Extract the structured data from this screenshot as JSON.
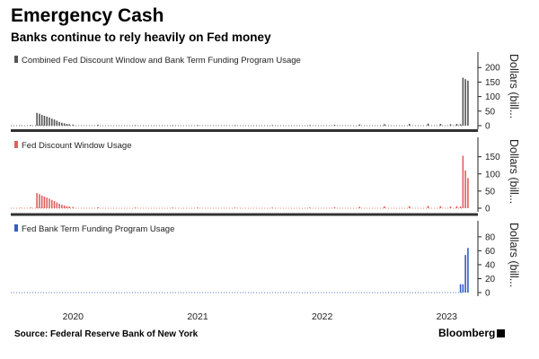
{
  "header": {
    "title": "Emergency Cash",
    "subtitle": "Banks continue to rely heavily on Fed money"
  },
  "footer": {
    "source": "Source: Federal Reserve Bank of New York",
    "brand": "Bloomberg"
  },
  "chart_data": {
    "type": "bar",
    "x_axis": {
      "start": 2019.5,
      "end": 2023.25,
      "ticks": [
        "2020",
        "2021",
        "2022",
        "2023"
      ]
    },
    "panels": [
      {
        "legend": "Combined Fed Discount Window and Bank Term Funding Program Usage",
        "color": "#555555",
        "ylabel": "Dollars (bill...",
        "ylim": [
          0,
          210
        ],
        "yticks": [
          0,
          50,
          100,
          150,
          200
        ],
        "bars": [
          [
            2019.5,
            0
          ],
          [
            2019.58,
            1
          ],
          [
            2019.66,
            2
          ],
          [
            2019.71,
            44
          ],
          [
            2019.73,
            41
          ],
          [
            2019.75,
            37
          ],
          [
            2019.77,
            34
          ],
          [
            2019.79,
            31
          ],
          [
            2019.81,
            28
          ],
          [
            2019.83,
            24
          ],
          [
            2019.85,
            21
          ],
          [
            2019.87,
            17
          ],
          [
            2019.89,
            13
          ],
          [
            2019.91,
            10
          ],
          [
            2019.93,
            8
          ],
          [
            2019.95,
            6
          ],
          [
            2019.97,
            5
          ],
          [
            2020.0,
            4
          ],
          [
            2020.2,
            3
          ],
          [
            2020.5,
            2
          ],
          [
            2020.8,
            2
          ],
          [
            2021.0,
            2
          ],
          [
            2021.3,
            2
          ],
          [
            2021.6,
            2
          ],
          [
            2021.9,
            2
          ],
          [
            2022.1,
            3
          ],
          [
            2022.3,
            4
          ],
          [
            2022.5,
            5
          ],
          [
            2022.7,
            6
          ],
          [
            2022.85,
            7
          ],
          [
            2022.95,
            6
          ],
          [
            2023.03,
            5
          ],
          [
            2023.08,
            6
          ],
          [
            2023.11,
            5
          ],
          [
            2023.13,
            165
          ],
          [
            2023.15,
            160
          ],
          [
            2023.17,
            155
          ]
        ]
      },
      {
        "legend": "Fed Discount Window Usage",
        "color": "#e06060",
        "ylabel": "Dollars (bill...",
        "ylim": [
          0,
          170
        ],
        "yticks": [
          0,
          50,
          100,
          150
        ],
        "bars": [
          [
            2019.5,
            0
          ],
          [
            2019.58,
            1
          ],
          [
            2019.66,
            2
          ],
          [
            2019.71,
            44
          ],
          [
            2019.73,
            41
          ],
          [
            2019.75,
            37
          ],
          [
            2019.77,
            34
          ],
          [
            2019.79,
            31
          ],
          [
            2019.81,
            28
          ],
          [
            2019.83,
            24
          ],
          [
            2019.85,
            21
          ],
          [
            2019.87,
            17
          ],
          [
            2019.89,
            13
          ],
          [
            2019.91,
            10
          ],
          [
            2019.93,
            8
          ],
          [
            2019.95,
            6
          ],
          [
            2019.97,
            5
          ],
          [
            2020.0,
            4
          ],
          [
            2020.2,
            3
          ],
          [
            2020.5,
            2
          ],
          [
            2020.8,
            2
          ],
          [
            2021.0,
            2
          ],
          [
            2021.3,
            2
          ],
          [
            2021.6,
            2
          ],
          [
            2021.9,
            2
          ],
          [
            2022.1,
            3
          ],
          [
            2022.3,
            4
          ],
          [
            2022.5,
            5
          ],
          [
            2022.7,
            6
          ],
          [
            2022.85,
            7
          ],
          [
            2022.95,
            6
          ],
          [
            2023.03,
            5
          ],
          [
            2023.08,
            6
          ],
          [
            2023.11,
            5
          ],
          [
            2023.13,
            153
          ],
          [
            2023.15,
            110
          ],
          [
            2023.17,
            88
          ]
        ]
      },
      {
        "legend": "Fed Bank Term Funding Program Usage",
        "color": "#2f5fc4",
        "ylabel": "Dollars (bill...",
        "ylim": [
          0,
          85
        ],
        "yticks": [
          0,
          20,
          40,
          60,
          80
        ],
        "bars": [
          [
            2019.5,
            0
          ],
          [
            2020.0,
            0
          ],
          [
            2020.5,
            0
          ],
          [
            2021.0,
            0
          ],
          [
            2021.5,
            0
          ],
          [
            2022.0,
            0
          ],
          [
            2022.5,
            0
          ],
          [
            2023.0,
            0
          ],
          [
            2023.11,
            12
          ],
          [
            2023.13,
            12
          ],
          [
            2023.15,
            54
          ],
          [
            2023.17,
            64
          ]
        ]
      }
    ]
  }
}
